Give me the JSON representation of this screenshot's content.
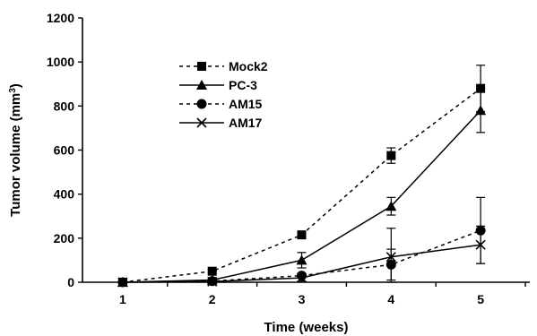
{
  "chart_data": {
    "type": "line",
    "title": "",
    "xlabel": "Time (weeks)",
    "ylabel": "Tumor volume (mm",
    "ylabel_superscript": "3",
    "ylabel_suffix": ")",
    "x": [
      1,
      2,
      3,
      4,
      5
    ],
    "x_tick_labels": [
      "1",
      "2",
      "3",
      "4",
      "5"
    ],
    "xlim": [
      0.55,
      5.55
    ],
    "ylim": [
      0,
      1200
    ],
    "y_ticks": [
      0,
      200,
      400,
      600,
      800,
      1000,
      1200
    ],
    "y_tick_labels": [
      "0",
      "200",
      "400",
      "600",
      "800",
      "1000",
      "1200"
    ],
    "grid": false,
    "legend_position": "top-left",
    "series": [
      {
        "name": "Mock2",
        "marker": "square",
        "line": "dashed",
        "values": [
          0,
          50,
          215,
          575,
          880
        ],
        "errors": [
          0,
          5,
          15,
          35,
          105
        ]
      },
      {
        "name": "PC-3",
        "marker": "triangle",
        "line": "solid",
        "values": [
          0,
          10,
          100,
          345,
          780
        ],
        "errors": [
          0,
          3,
          35,
          40,
          100
        ]
      },
      {
        "name": "AM15",
        "marker": "circle",
        "line": "dashed",
        "values": [
          0,
          5,
          30,
          80,
          235
        ],
        "errors": [
          0,
          2,
          10,
          70,
          150
        ]
      },
      {
        "name": "AM17",
        "marker": "x",
        "line": "solid",
        "values": [
          0,
          3,
          20,
          115,
          170
        ],
        "errors": [
          0,
          2,
          15,
          130,
          85
        ]
      }
    ]
  }
}
